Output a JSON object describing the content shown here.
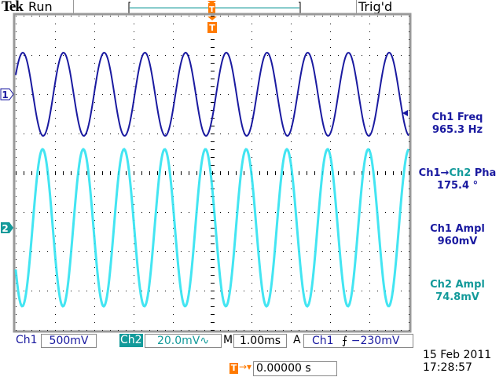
{
  "header": {
    "brand": "Tek",
    "acq_state": "Run",
    "trigger_state": "Trig'd"
  },
  "measurements": [
    {
      "label": "Ch1 Freq",
      "value": "965.3 Hz",
      "color": "#1a1aa0"
    },
    {
      "label_a": "Ch1",
      "arrow": "→",
      "label_b": "Ch2",
      "label_c": " Pha",
      "value": "175.4 °"
    },
    {
      "label": "Ch1 Ampl",
      "value": "960mV",
      "color": "#1a1aa0"
    },
    {
      "label": "Ch2 Ampl",
      "value": "74.8mV",
      "color": "#139a9a"
    }
  ],
  "channels": {
    "ch1": {
      "marker": "1",
      "label": "Ch1",
      "scale": "500mV",
      "color": "#1a1aa0",
      "freq_hz": 965.3,
      "ampl_div": 1.06,
      "offset_div": 2
    },
    "ch2": {
      "marker": "2",
      "label": "Ch2",
      "scale": "20.0mV∿",
      "color": "#22e0f0",
      "ampl_div": 2.0,
      "offset_div": -1.4,
      "phase_deg": 175.4
    }
  },
  "timebase": {
    "label": "M",
    "scale": "1.00ms",
    "time_per_div_s": 0.001
  },
  "trigger": {
    "mode": "A",
    "source": "Ch1",
    "slope_icon": "rising-edge-icon",
    "slope": "⨍",
    "level": "−230mV",
    "position_marker": "T",
    "position_readout": "0.00000 s"
  },
  "datetime": {
    "date": "15 Feb  2011",
    "time": "17:28:57"
  },
  "colors": {
    "trigger": "#ff7a00",
    "ch2_badge": "#139a9a"
  }
}
